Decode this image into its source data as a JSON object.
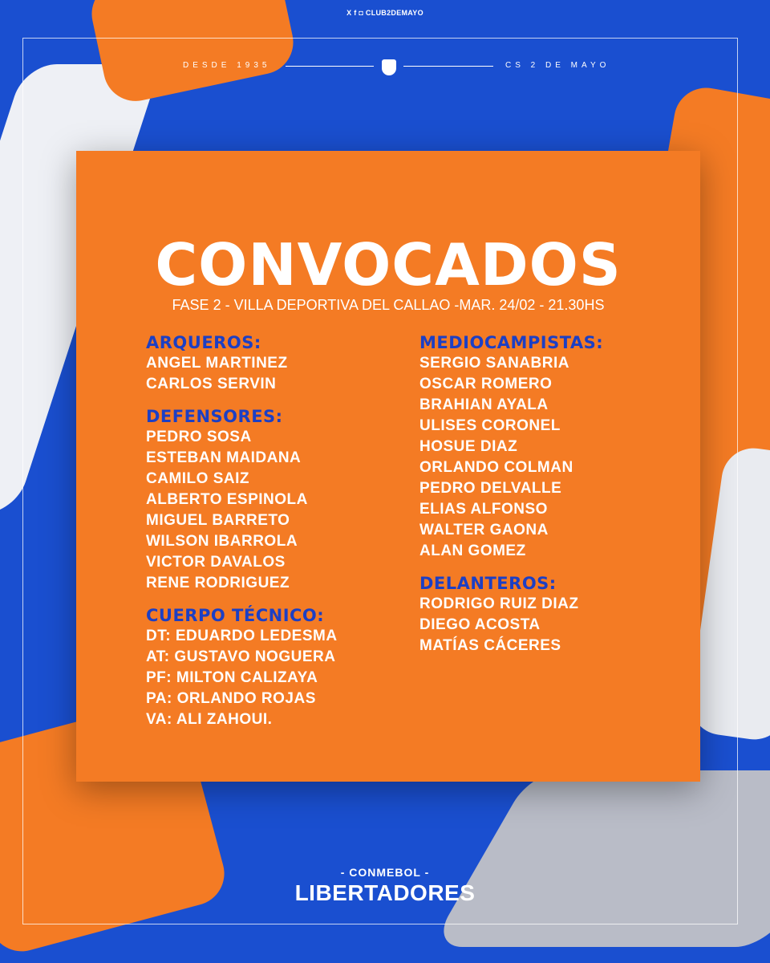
{
  "social": {
    "handle": "CLUB2DEMAYO",
    "icons": [
      "x-icon",
      "facebook-icon",
      "instagram-icon"
    ]
  },
  "top": {
    "left": "DESDE 1935",
    "right": "CS 2 DE MAYO"
  },
  "colors": {
    "background": "#1a4fd0",
    "card": "#f47b24",
    "heading": "#1c3fc4"
  },
  "card": {
    "title": "CONVOCADOS",
    "subtitle": "FASE 2 - VILLA DEPORTIVA DEL CALLAO  -MAR. 24/02 - 21.30HS",
    "left": [
      {
        "heading": "ARQUEROS:",
        "items": [
          "ANGEL MARTINEZ",
          "CARLOS SERVIN"
        ]
      },
      {
        "heading": "DEFENSORES:",
        "items": [
          "PEDRO SOSA",
          "ESTEBAN MAIDANA",
          "CAMILO SAIZ",
          "ALBERTO ESPINOLA",
          "MIGUEL BARRETO",
          "WILSON IBARROLA",
          "VICTOR DAVALOS",
          "RENE RODRIGUEZ"
        ]
      },
      {
        "heading": "CUERPO TÉCNICO:",
        "items": [
          "DT: EDUARDO LEDESMA",
          "AT: GUSTAVO NOGUERA",
          "PF: MILTON CALIZAYA",
          "PA: ORLANDO ROJAS",
          "VA: ALI ZAHOUI."
        ]
      }
    ],
    "right": [
      {
        "heading": "MEDIOCAMPISTAS:",
        "items": [
          "SERGIO SANABRIA",
          "OSCAR ROMERO",
          "BRAHIAN AYALA",
          "ULISES CORONEL",
          "HOSUE DIAZ",
          "ORLANDO COLMAN",
          "PEDRO DELVALLE",
          "ELIAS ALFONSO",
          "WALTER GAONA",
          "ALAN GOMEZ"
        ]
      },
      {
        "heading": "DELANTEROS:",
        "items": [
          "RODRIGO RUIZ DIAZ",
          "DIEGO ACOSTA",
          "MATÍAS CÁCERES"
        ]
      }
    ]
  },
  "footer": {
    "top": "- CONMEBOL -",
    "bottom": "LIBERTADORES"
  }
}
